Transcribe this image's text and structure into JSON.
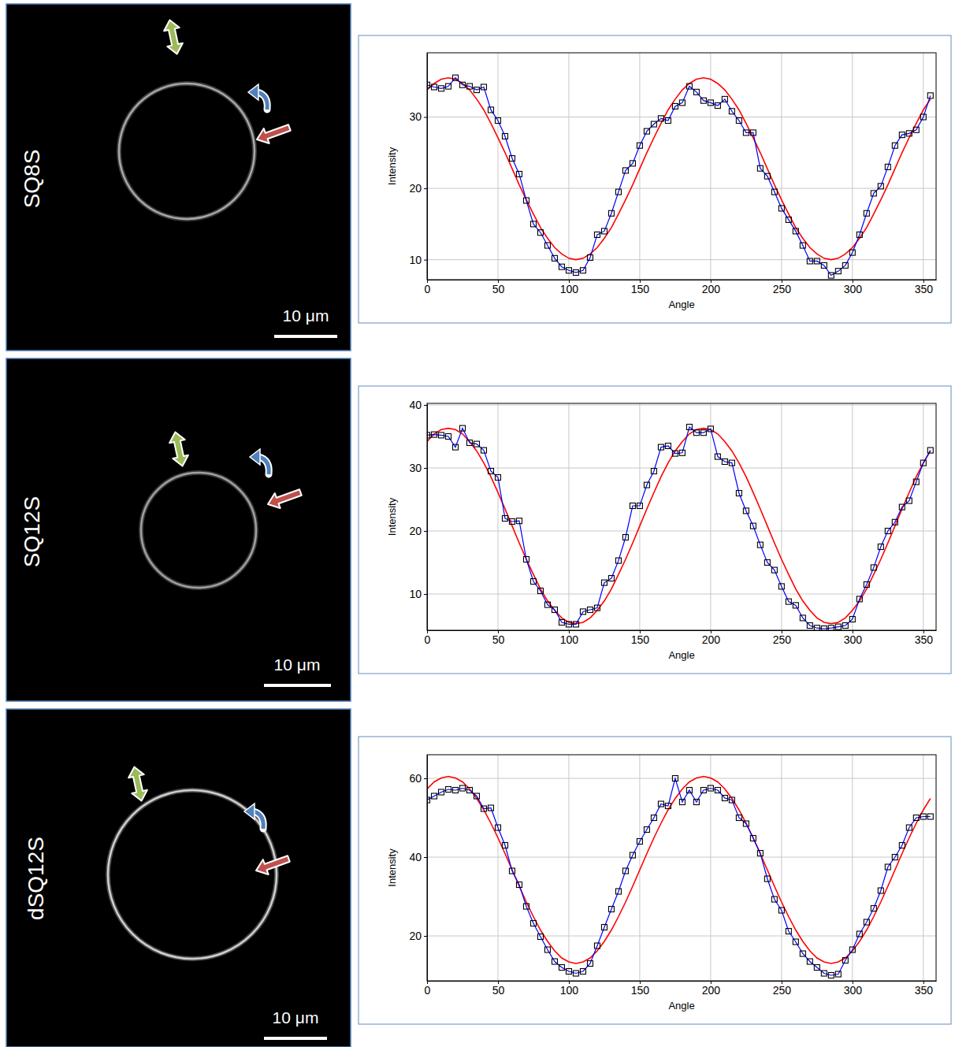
{
  "chart_data": [
    {
      "type": "line",
      "xlabel": "Angle",
      "ylabel": "Intensity",
      "grid": true,
      "x": [
        0,
        5,
        10,
        15,
        20,
        25,
        30,
        35,
        40,
        45,
        50,
        55,
        60,
        65,
        70,
        75,
        80,
        85,
        90,
        95,
        100,
        105,
        110,
        115,
        120,
        125,
        130,
        135,
        140,
        145,
        150,
        155,
        160,
        165,
        170,
        175,
        180,
        185,
        190,
        195,
        200,
        205,
        210,
        215,
        220,
        225,
        230,
        235,
        240,
        245,
        250,
        255,
        260,
        265,
        270,
        275,
        280,
        285,
        290,
        295,
        300,
        305,
        310,
        315,
        320,
        325,
        330,
        335,
        340,
        345,
        350,
        355
      ],
      "xlim": [
        0,
        359
      ],
      "xticks": [
        0,
        50,
        100,
        150,
        200,
        250,
        300,
        350
      ],
      "ylim": [
        7.2,
        39
      ],
      "yticks": [
        10,
        20,
        30
      ],
      "series": [
        {
          "color": "#0000ff",
          "marker": "square",
          "values": [
            34.5,
            34.2,
            34.0,
            34.3,
            35.5,
            34.5,
            34.3,
            33.8,
            34.2,
            31.0,
            29.5,
            27.3,
            24.2,
            22.0,
            18.3,
            15.0,
            13.8,
            12.0,
            10.2,
            9.0,
            8.5,
            8.2,
            8.5,
            10.3,
            13.5,
            14.0,
            16.5,
            19.5,
            22.5,
            23.5,
            26.0,
            28.0,
            29.0,
            29.8,
            29.5,
            31.5,
            32.0,
            34.3,
            33.5,
            32.3,
            32.0,
            31.6,
            32.5,
            30.8,
            29.5,
            27.8,
            27.8,
            22.8,
            21.7,
            19.5,
            17.2,
            15.6,
            14.0,
            12.0,
            9.8,
            9.8,
            9.2,
            7.8,
            8.4,
            9.2,
            11.0,
            13.5,
            16.5,
            19.3,
            20.3,
            23.0,
            26.0,
            27.5,
            27.7,
            28.2,
            30.0,
            33.0
          ]
        },
        {
          "color": "#ff0000",
          "marker": "none",
          "values": [
            33.8,
            34.7,
            35.3,
            35.5,
            35.3,
            34.7,
            33.8,
            32.5,
            31.0,
            29.1,
            27.1,
            25.0,
            22.75,
            20.5,
            18.4,
            16.4,
            14.5,
            13.0,
            11.7,
            10.8,
            10.2,
            10.0,
            10.2,
            10.8,
            11.7,
            13.0,
            14.5,
            16.4,
            18.4,
            20.5,
            22.75,
            25.0,
            27.1,
            29.1,
            31.0,
            32.5,
            33.8,
            34.7,
            35.3,
            35.5,
            35.3,
            34.7,
            33.8,
            32.5,
            31.0,
            29.1,
            27.1,
            25.0,
            22.75,
            20.5,
            18.4,
            16.4,
            14.5,
            13.0,
            11.7,
            10.8,
            10.2,
            10.0,
            10.2,
            10.8,
            11.7,
            13.0,
            14.5,
            16.4,
            18.4,
            20.5,
            22.75,
            25.0,
            27.1,
            29.1,
            31.0,
            32.5
          ]
        }
      ]
    },
    {
      "type": "line",
      "xlabel": "Angle",
      "ylabel": "Intensity",
      "grid": true,
      "x": [
        0,
        5,
        10,
        15,
        20,
        25,
        30,
        35,
        40,
        45,
        50,
        55,
        60,
        65,
        70,
        75,
        80,
        85,
        90,
        95,
        100,
        105,
        110,
        115,
        120,
        125,
        130,
        135,
        140,
        145,
        150,
        155,
        160,
        165,
        170,
        175,
        180,
        185,
        190,
        195,
        200,
        205,
        210,
        215,
        220,
        225,
        230,
        235,
        240,
        245,
        250,
        255,
        260,
        265,
        270,
        275,
        280,
        285,
        290,
        295,
        300,
        305,
        310,
        315,
        320,
        325,
        330,
        335,
        340,
        345,
        350,
        355
      ],
      "xlim": [
        0,
        359
      ],
      "xticks": [
        0,
        50,
        100,
        150,
        200,
        250,
        300,
        350
      ],
      "ylim": [
        4.25,
        40.25
      ],
      "yticks": [
        10,
        20,
        30,
        40
      ],
      "series": [
        {
          "color": "#0000ff",
          "marker": "square",
          "values": [
            35.2,
            35.3,
            35.2,
            35.0,
            33.3,
            36.3,
            34.0,
            33.8,
            32.8,
            29.5,
            28.5,
            22.0,
            21.5,
            21.6,
            15.5,
            12.0,
            10.5,
            8.3,
            7.5,
            5.5,
            5.2,
            5.2,
            7.2,
            7.5,
            7.8,
            11.8,
            12.5,
            15.3,
            19.0,
            24.0,
            24.0,
            27.3,
            29.5,
            33.3,
            33.5,
            32.3,
            32.4,
            36.5,
            35.6,
            35.6,
            36.2,
            31.8,
            31.0,
            30.8,
            26.0,
            23.2,
            20.8,
            17.8,
            15.0,
            13.8,
            11.2,
            8.8,
            8.2,
            6.2,
            5.0,
            4.6,
            4.5,
            4.6,
            4.8,
            5.0,
            6.0,
            9.2,
            11.5,
            14.2,
            17.5,
            20.0,
            21.4,
            23.8,
            24.8,
            27.8,
            30.8,
            32.8
          ]
        },
        {
          "color": "#ff0000",
          "marker": "none",
          "values": [
            34.2,
            35.4,
            36.1,
            36.3,
            36.1,
            35.4,
            34.2,
            32.7,
            30.8,
            28.6,
            26.1,
            23.5,
            20.8,
            18.1,
            15.5,
            13.1,
            10.8,
            8.9,
            7.4,
            6.2,
            5.5,
            5.3,
            5.5,
            6.2,
            7.4,
            8.9,
            10.8,
            13.1,
            15.5,
            18.1,
            20.8,
            23.5,
            26.1,
            28.6,
            30.8,
            32.7,
            34.2,
            35.4,
            36.1,
            36.3,
            36.1,
            35.4,
            34.2,
            32.7,
            30.8,
            28.6,
            26.1,
            23.5,
            20.8,
            18.1,
            15.5,
            13.1,
            10.8,
            8.9,
            7.4,
            6.2,
            5.5,
            5.3,
            5.5,
            6.2,
            7.4,
            8.9,
            10.8,
            13.1,
            15.5,
            18.1,
            20.8,
            23.5,
            26.1,
            28.6,
            30.8,
            32.7
          ]
        }
      ]
    },
    {
      "type": "line",
      "xlabel": "Angle",
      "ylabel": "Intensity",
      "grid": true,
      "x": [
        0,
        5,
        10,
        15,
        20,
        25,
        30,
        35,
        40,
        45,
        50,
        55,
        60,
        65,
        70,
        75,
        80,
        85,
        90,
        95,
        100,
        105,
        110,
        115,
        120,
        125,
        130,
        135,
        140,
        145,
        150,
        155,
        160,
        165,
        170,
        175,
        180,
        185,
        190,
        195,
        200,
        205,
        210,
        215,
        220,
        225,
        230,
        235,
        240,
        245,
        250,
        255,
        260,
        265,
        270,
        275,
        280,
        285,
        290,
        295,
        300,
        305,
        310,
        315,
        320,
        325,
        330,
        335,
        340,
        345,
        350,
        355
      ],
      "xlim": [
        0,
        359
      ],
      "xticks": [
        0,
        50,
        100,
        150,
        200,
        250,
        300,
        350
      ],
      "ylim": [
        8.6,
        66
      ],
      "yticks": [
        20,
        40,
        60
      ],
      "series": [
        {
          "color": "#0000ff",
          "marker": "square",
          "values": [
            54.5,
            55.5,
            56.5,
            57.2,
            57.0,
            57.5,
            57.0,
            55.5,
            52.3,
            52.5,
            47.5,
            43.0,
            36.5,
            33.0,
            27.5,
            23.2,
            19.8,
            16.5,
            13.5,
            12.0,
            11.0,
            10.5,
            11.0,
            13.0,
            17.5,
            22.2,
            26.8,
            31.3,
            36.5,
            40.5,
            44.0,
            47.0,
            50.0,
            53.5,
            53.0,
            60.0,
            54.0,
            57.0,
            54.0,
            57.0,
            57.5,
            57.0,
            55.0,
            54.5,
            50.0,
            48.5,
            44.8,
            41.0,
            34.5,
            29.3,
            26.5,
            21.2,
            18.5,
            15.5,
            13.5,
            12.0,
            10.5,
            10.0,
            10.3,
            13.8,
            16.5,
            20.5,
            23.5,
            27.0,
            31.5,
            37.5,
            40.0,
            43.0,
            47.5,
            50.0,
            50.3,
            50.3
          ]
        },
        {
          "color": "#ff0000",
          "marker": "none",
          "values": [
            57.3,
            59.1,
            60.1,
            60.5,
            60.1,
            59.1,
            57.3,
            54.9,
            52.0,
            48.6,
            44.9,
            40.9,
            36.75,
            32.6,
            28.6,
            24.9,
            21.5,
            18.6,
            16.2,
            14.4,
            13.4,
            13.0,
            13.4,
            14.4,
            16.2,
            18.6,
            21.5,
            24.9,
            28.6,
            32.6,
            36.75,
            40.9,
            44.9,
            48.6,
            52.0,
            54.9,
            57.3,
            59.1,
            60.1,
            60.5,
            60.1,
            59.1,
            57.3,
            54.9,
            52.0,
            48.6,
            44.9,
            40.9,
            36.75,
            32.6,
            28.6,
            24.9,
            21.5,
            18.6,
            16.2,
            14.4,
            13.4,
            13.0,
            13.4,
            14.4,
            16.2,
            18.6,
            21.5,
            24.9,
            28.6,
            32.6,
            36.75,
            40.9,
            44.9,
            48.6,
            52.0,
            54.9
          ]
        }
      ]
    }
  ],
  "panels": [
    {
      "label": "SQ8S",
      "scale_bar": "10 μm"
    },
    {
      "label": "SQ12S",
      "scale_bar": "10 μm"
    },
    {
      "label": "dSQ12S",
      "scale_bar": "10 μm"
    }
  ]
}
